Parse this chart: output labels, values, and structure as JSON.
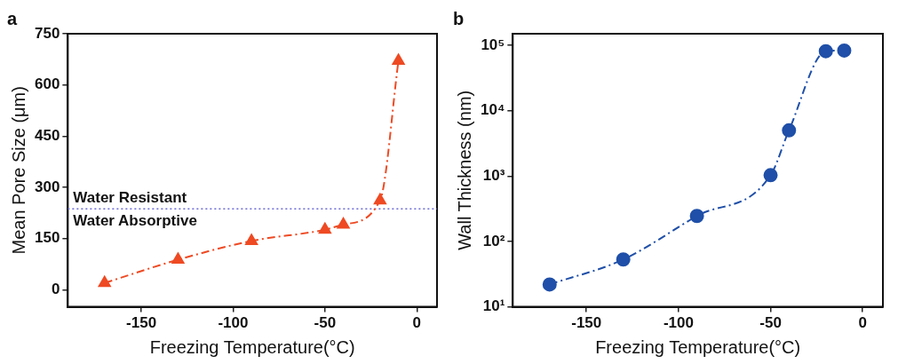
{
  "chart_data": [
    {
      "type": "line",
      "title": "a",
      "xlabel": "Freezing Temperature(°C)",
      "ylabel": "Mean Pore Size (μm)",
      "x": [
        -170,
        -130,
        -90,
        -50,
        -40,
        -20,
        -10
      ],
      "series": [
        {
          "color": "#ee4a23",
          "values": [
            20,
            88,
            143,
            176,
            191,
            262,
            671
          ]
        }
      ],
      "xlim": [
        -190,
        11
      ],
      "xticks": [
        -150,
        -100,
        -50,
        0
      ],
      "ylim": [
        -50,
        750
      ],
      "yticks": [
        0,
        150,
        300,
        450,
        600,
        750
      ],
      "ref_lines": [
        {
          "axis": "y",
          "value": 237,
          "color": "#6b6bd6",
          "line_style": "dotted"
        }
      ],
      "annotations": [
        "Water Resistant",
        "Water Absorptive"
      ],
      "marker": "triangle",
      "line_style": "dashed",
      "grid": false,
      "legend": false
    },
    {
      "type": "line",
      "title": "b",
      "xlabel": "Freezing Temperature(°C)",
      "ylabel": "Wall Thickness (nm)",
      "x": [
        -170,
        -130,
        -90,
        -50,
        -40,
        -20,
        -10
      ],
      "series": [
        {
          "color": "#1f4fa8",
          "values": [
            22,
            53,
            245,
            1030,
            5000,
            81000,
            83000
          ]
        }
      ],
      "xlim": [
        -190,
        11
      ],
      "xticks": [
        -150,
        -100,
        -50,
        0
      ],
      "ylim": [
        10,
        150000
      ],
      "yticks": [
        {
          "value": 10,
          "label": "10¹"
        },
        {
          "value": 100,
          "label": "10²"
        },
        {
          "value": 1000,
          "label": "10³"
        },
        {
          "value": 10000,
          "label": "10⁴"
        },
        {
          "value": 100000,
          "label": "10⁵"
        }
      ],
      "log": "y",
      "marker": "circle",
      "line_style": "dashed",
      "grid": false,
      "legend": false
    }
  ]
}
